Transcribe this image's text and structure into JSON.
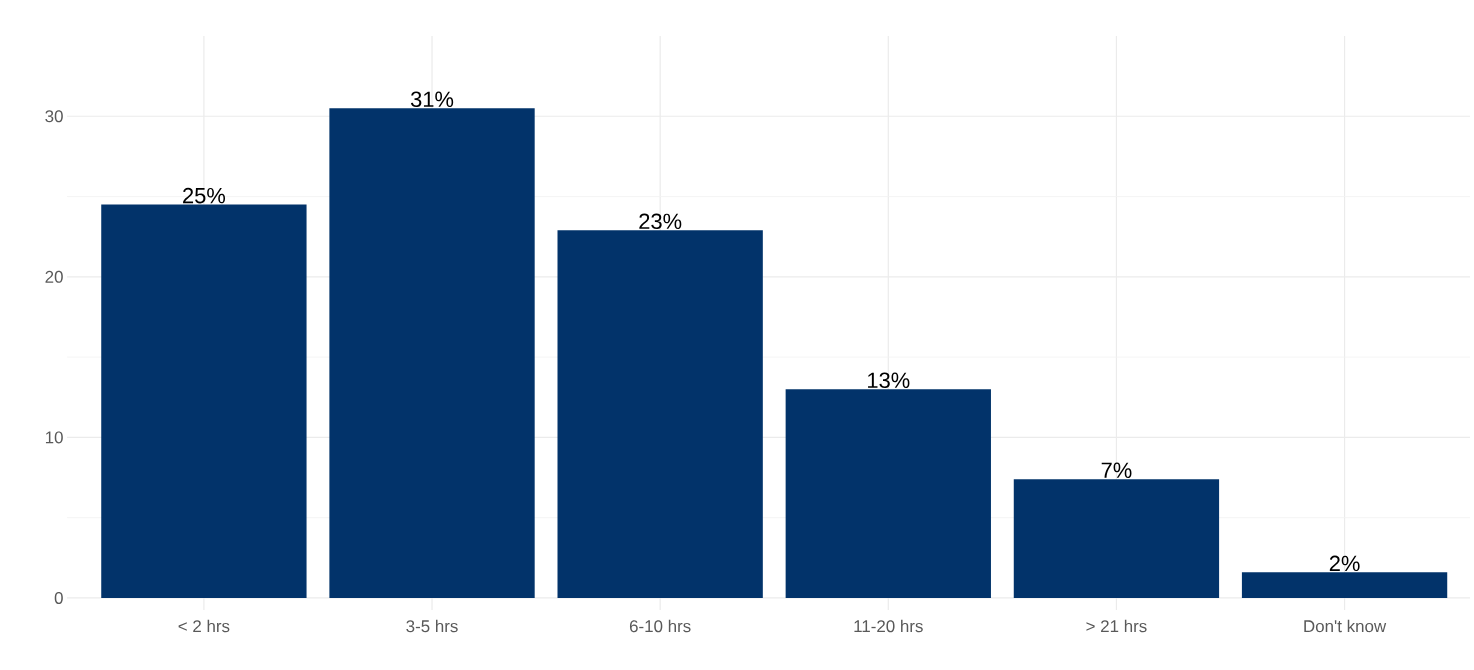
{
  "chart_data": {
    "type": "bar",
    "categories": [
      "< 2 hrs",
      "3-5 hrs",
      "6-10 hrs",
      "11-20 hrs",
      "> 21 hrs",
      "Don't know"
    ],
    "values": [
      24.5,
      30.5,
      22.9,
      13.0,
      7.4,
      1.6
    ],
    "value_labels": [
      "25%",
      "31%",
      "23%",
      "13%",
      "7%",
      "2%"
    ],
    "color": "#02336a",
    "ylim": [
      -0.75,
      35
    ],
    "yticks": [
      0,
      10,
      20,
      30
    ],
    "grid": true
  }
}
